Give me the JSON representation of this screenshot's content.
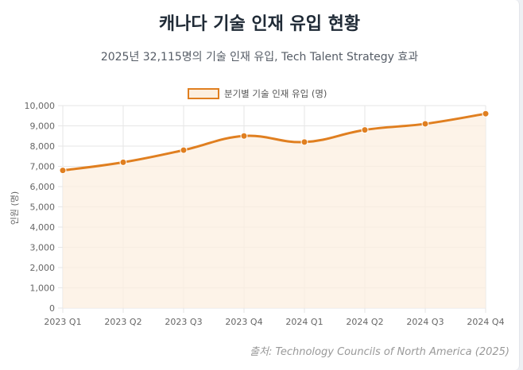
{
  "header": {
    "title": "캐나다 기술 인재 유입 현황",
    "subtitle": "2025년 32,115명의 기술 인재 유입, Tech Talent Strategy 효과"
  },
  "footer": {
    "source": "출처: Technology Councils of North America (2025)"
  },
  "chart_data": {
    "type": "line",
    "title": "캐나다 기술 인재 유입 현황",
    "categories": [
      "2023 Q1",
      "2023 Q2",
      "2023 Q3",
      "2023 Q4",
      "2024 Q1",
      "2024 Q2",
      "2024 Q3",
      "2024 Q4"
    ],
    "series": [
      {
        "name": "분기별 기술 인재 유입 (명)",
        "values": [
          6800,
          7200,
          7800,
          8500,
          8200,
          8800,
          9100,
          9600
        ],
        "color": "#e07f20",
        "fill": "#fcefe0"
      }
    ],
    "xlabel": "",
    "ylabel": "인원 (명)",
    "ylim": [
      0,
      10000
    ],
    "yticks": [
      "0",
      "1,000",
      "2,000",
      "3,000",
      "4,000",
      "5,000",
      "6,000",
      "7,000",
      "8,000",
      "9,000",
      "10,000"
    ],
    "grid": true,
    "legend": "top-center"
  }
}
